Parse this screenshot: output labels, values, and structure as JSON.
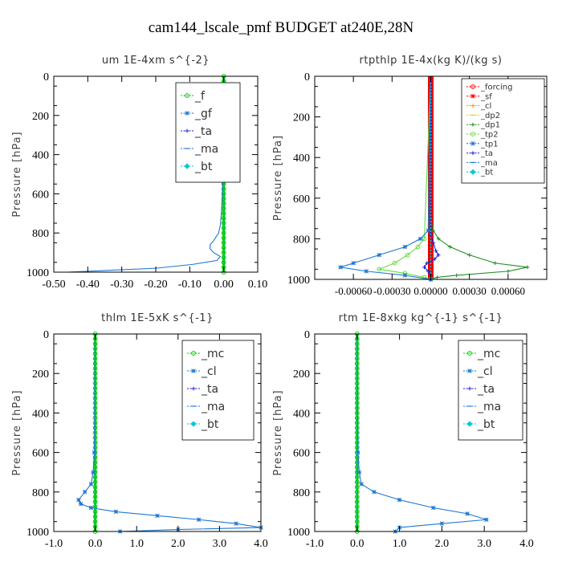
{
  "figure": {
    "title": "cam144_lscale_pmf  BUDGET at240E,28N"
  },
  "chart_data": [
    {
      "type": "line",
      "title": "um   1E-4xm s^{-2}",
      "ylabel": "Pressure [hPa]",
      "xlabel": "",
      "xlim": [
        -0.5,
        0.1
      ],
      "ylim": [
        1000,
        0
      ],
      "xticks": [
        "-0.50",
        "-0.40",
        "-0.30",
        "-0.20",
        "-0.10",
        "0.00",
        "0.10"
      ],
      "xtick_values": [
        -0.5,
        -0.4,
        -0.3,
        -0.2,
        -0.1,
        0.0,
        0.1
      ],
      "yticks": [
        "0",
        "200",
        "400",
        "600",
        "800",
        "1000"
      ],
      "ytick_values": [
        0,
        200,
        400,
        600,
        800,
        1000
      ],
      "legend": {
        "placement": "top-right",
        "entries": [
          "_f",
          "_gf",
          "_ta",
          "_ma",
          "_bt"
        ]
      },
      "series": [
        {
          "name": "_f",
          "color": "#00cc00",
          "marker": "circle",
          "pressure": [
            0,
            100,
            200,
            300,
            400,
            500,
            600,
            700,
            800,
            900,
            1000
          ],
          "values": [
            0,
            0,
            0,
            0,
            0,
            0,
            0,
            0,
            0,
            0,
            0
          ]
        },
        {
          "name": "_gf",
          "color": "#1f77d0",
          "marker": "star",
          "pressure": [
            0,
            200,
            400,
            600,
            700,
            760,
            800,
            840,
            860,
            880,
            900,
            920,
            940,
            960,
            980,
            1000
          ],
          "values": [
            0,
            0,
            -0.002,
            -0.004,
            -0.007,
            -0.01,
            -0.015,
            -0.03,
            -0.04,
            -0.04,
            -0.03,
            -0.01,
            -0.02,
            -0.09,
            -0.2,
            -0.46
          ]
        },
        {
          "name": "_ta",
          "color": "#2222cc",
          "marker": "plus",
          "pressure": [
            0,
            500,
            1000
          ],
          "values": [
            0,
            0,
            0
          ]
        },
        {
          "name": "_ma",
          "color": "#1f77d0",
          "marker": "dash",
          "pressure": [
            0,
            500,
            1000
          ],
          "values": [
            0,
            0,
            0
          ]
        },
        {
          "name": "_bt",
          "color": "#00c8d8",
          "marker": "diamond",
          "pressure": [
            0,
            500,
            1000
          ],
          "values": [
            0,
            0,
            0
          ]
        }
      ]
    },
    {
      "type": "line",
      "title": "rtpthlp   1E-4x(kg K)/(kg s)",
      "ylabel": "Pressure [hPa]",
      "xlabel": "",
      "xlim": [
        -0.0009,
        0.0009
      ],
      "ylim": [
        1000,
        0
      ],
      "xticks": [
        "-0.00060",
        "-0.00030",
        "0.00000",
        "0.00030",
        "0.00060"
      ],
      "xtick_values": [
        -0.0006,
        -0.0003,
        0.0,
        0.0003,
        0.0006
      ],
      "yticks": [
        "0",
        "200",
        "400",
        "600",
        "800",
        "1000"
      ],
      "ytick_values": [
        0,
        200,
        400,
        600,
        800,
        1000
      ],
      "legend": {
        "placement": "top-right",
        "entries": [
          "_forcing",
          "_sf",
          "_cl",
          "_dp2",
          "_dp1",
          "_tp2",
          "_tp1",
          "_ta",
          "_ma",
          "_bt"
        ]
      },
      "series": [
        {
          "name": "_forcing",
          "color": "#ff0000",
          "marker": "circle",
          "pressure": [
            0,
            500,
            1000
          ],
          "values": [
            0,
            0,
            0
          ]
        },
        {
          "name": "_sf",
          "color": "#ff0000",
          "marker": "star",
          "pressure": [
            0,
            500,
            1000
          ],
          "values": [
            0,
            0,
            0
          ]
        },
        {
          "name": "_cl",
          "color": "#ff9900",
          "marker": "plus",
          "pressure": [
            0,
            500,
            1000
          ],
          "values": [
            0,
            0,
            0
          ]
        },
        {
          "name": "_dp2",
          "color": "#e8d000",
          "marker": "dash",
          "pressure": [
            0,
            500,
            1000
          ],
          "values": [
            0,
            0,
            0
          ]
        },
        {
          "name": "_dp1",
          "color": "#228b22",
          "marker": "plus",
          "pressure": [
            0,
            700,
            760,
            800,
            840,
            880,
            920,
            940,
            960,
            980,
            990,
            1000
          ],
          "values": [
            0,
            0,
            2e-05,
            6e-05,
            0.00015,
            0.0003,
            0.0005,
            0.00075,
            0.0006,
            0.0002,
            5e-05,
            0
          ],
          "show_markers": true
        },
        {
          "name": "_tp2",
          "color": "#66dd44",
          "marker": "circle",
          "pressure": [
            0,
            800,
            840,
            880,
            920,
            950,
            970,
            990,
            1000
          ],
          "values": [
            0,
            -5e-05,
            -0.0001,
            -0.00018,
            -0.00028,
            -0.0004,
            -0.0002,
            -5e-05,
            0
          ],
          "show_markers": true
        },
        {
          "name": "_tp1",
          "color": "#1f77d0",
          "marker": "star",
          "pressure": [
            0,
            760,
            800,
            840,
            880,
            920,
            940,
            960,
            980,
            1000
          ],
          "values": [
            0,
            -2e-05,
            -8e-05,
            -0.0002,
            -0.0004,
            -0.0006,
            -0.0007,
            -0.0005,
            -0.0002,
            0
          ],
          "show_markers": true
        },
        {
          "name": "_ta",
          "color": "#2222cc",
          "marker": "plus",
          "pressure": [
            0,
            780,
            820,
            860,
            880,
            900,
            920,
            940,
            960,
            980,
            1000
          ],
          "values": [
            0,
            0,
            2e-05,
            4e-05,
            6e-05,
            3e-05,
            -3e-05,
            -5e-05,
            -2e-05,
            0,
            0
          ],
          "show_markers": true
        },
        {
          "name": "_ma",
          "color": "#1f77d0",
          "marker": "dash",
          "pressure": [
            0,
            500,
            1000
          ],
          "values": [
            0,
            0,
            0
          ]
        },
        {
          "name": "_bt",
          "color": "#00c8d8",
          "marker": "diamond",
          "pressure": [
            0,
            500,
            1000
          ],
          "values": [
            0,
            0,
            0
          ]
        }
      ],
      "red_band": true
    },
    {
      "type": "line",
      "title": "thlm   1E-5xK s^{-1}",
      "ylabel": "Pressure [hPa]",
      "xlabel": "",
      "xlim": [
        -1.0,
        4.0
      ],
      "ylim": [
        1000,
        0
      ],
      "xticks": [
        "-1.0",
        "0.0",
        "1.0",
        "2.0",
        "3.0",
        "4.0"
      ],
      "xtick_values": [
        -1,
        0,
        1,
        2,
        3,
        4
      ],
      "yticks": [
        "0",
        "200",
        "400",
        "600",
        "800",
        "1000"
      ],
      "ytick_values": [
        0,
        200,
        400,
        600,
        800,
        1000
      ],
      "legend": {
        "placement": "top-right",
        "entries": [
          "_mc",
          "_cl",
          "_ta",
          "_ma",
          "_bt"
        ]
      },
      "series": [
        {
          "name": "_mc",
          "color": "#00cc00",
          "marker": "circle",
          "pressure": [
            0,
            100,
            200,
            300,
            400,
            500,
            600,
            700,
            800,
            900,
            1000
          ],
          "values": [
            0,
            0,
            0,
            0,
            0,
            0,
            0,
            0,
            0,
            0,
            0
          ]
        },
        {
          "name": "_cl",
          "color": "#1f77d0",
          "marker": "star",
          "pressure": [
            0,
            600,
            700,
            760,
            800,
            840,
            860,
            880,
            900,
            920,
            940,
            960,
            980,
            990,
            1000
          ],
          "values": [
            0,
            -0.02,
            -0.05,
            -0.1,
            -0.25,
            -0.4,
            -0.35,
            -0.1,
            0.5,
            1.5,
            2.5,
            3.4,
            4.0,
            2.0,
            0.6
          ],
          "show_markers": true
        },
        {
          "name": "_ta",
          "color": "#2222cc",
          "marker": "plus",
          "pressure": [
            0,
            500,
            1000
          ],
          "values": [
            0,
            0,
            0
          ]
        },
        {
          "name": "_ma",
          "color": "#1f77d0",
          "marker": "dash",
          "pressure": [
            0,
            500,
            1000
          ],
          "values": [
            0,
            0,
            0
          ]
        },
        {
          "name": "_bt",
          "color": "#00c8d8",
          "marker": "diamond",
          "pressure": [
            0,
            500,
            1000
          ],
          "values": [
            0,
            0,
            0
          ]
        }
      ]
    },
    {
      "type": "line",
      "title": "rtm   1E-8xkg kg^{-1} s^{-1}",
      "ylabel": "Pressure [hPa]",
      "xlabel": "",
      "xlim": [
        -1.0,
        4.0
      ],
      "ylim": [
        1000,
        0
      ],
      "xticks": [
        "-1.0",
        "0.0",
        "1.0",
        "2.0",
        "3.0",
        "4.0"
      ],
      "xtick_values": [
        -1,
        0,
        1,
        2,
        3,
        4
      ],
      "yticks": [
        "0",
        "200",
        "400",
        "600",
        "800",
        "1000"
      ],
      "ytick_values": [
        0,
        200,
        400,
        600,
        800,
        1000
      ],
      "legend": {
        "placement": "top-right",
        "entries": [
          "_mc",
          "_cl",
          "_ta",
          "_ma",
          "_bt"
        ]
      },
      "series": [
        {
          "name": "_mc",
          "color": "#00cc00",
          "marker": "circle",
          "pressure": [
            0,
            100,
            200,
            300,
            400,
            500,
            600,
            700,
            800,
            900,
            1000
          ],
          "values": [
            0,
            0,
            0,
            0,
            0,
            0,
            0,
            0,
            0,
            0,
            0
          ]
        },
        {
          "name": "_cl",
          "color": "#1f77d0",
          "marker": "star",
          "pressure": [
            0,
            600,
            700,
            760,
            800,
            840,
            880,
            910,
            940,
            960,
            980,
            1000
          ],
          "values": [
            0,
            0.02,
            0.05,
            0.1,
            0.4,
            1.0,
            1.8,
            2.6,
            3.05,
            2.0,
            1.0,
            0.9
          ],
          "show_markers": true
        },
        {
          "name": "_ta",
          "color": "#2222cc",
          "marker": "plus",
          "pressure": [
            0,
            500,
            1000
          ],
          "values": [
            0,
            0,
            0
          ]
        },
        {
          "name": "_ma",
          "color": "#1f77d0",
          "marker": "dash",
          "pressure": [
            0,
            500,
            1000
          ],
          "values": [
            0,
            0,
            0
          ]
        },
        {
          "name": "_bt",
          "color": "#00c8d8",
          "marker": "diamond",
          "pressure": [
            0,
            500,
            1000
          ],
          "values": [
            0,
            0,
            0
          ]
        }
      ]
    }
  ]
}
